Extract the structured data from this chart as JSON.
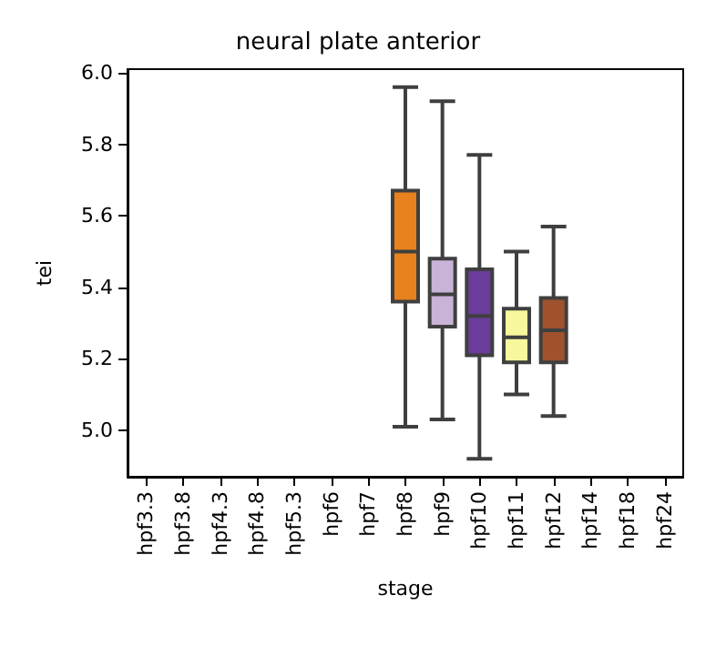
{
  "chart_data": {
    "type": "box",
    "title": "neural plate anterior",
    "xlabel": "stage",
    "ylabel": "tei",
    "categories": [
      "hpf3.3",
      "hpf3.8",
      "hpf4.3",
      "hpf4.8",
      "hpf5.3",
      "hpf6",
      "hpf7",
      "hpf8",
      "hpf9",
      "hpf10",
      "hpf11",
      "hpf12",
      "hpf14",
      "hpf18",
      "hpf24"
    ],
    "boxes": [
      null,
      null,
      null,
      null,
      null,
      null,
      null,
      {
        "low": 5.01,
        "q1": 5.36,
        "median": 5.5,
        "q3": 5.67,
        "high": 5.96
      },
      {
        "low": 5.03,
        "q1": 5.29,
        "median": 5.38,
        "q3": 5.48,
        "high": 5.92
      },
      {
        "low": 4.92,
        "q1": 5.21,
        "median": 5.32,
        "q3": 5.45,
        "high": 5.77
      },
      {
        "low": 5.1,
        "q1": 5.19,
        "median": 5.26,
        "q3": 5.34,
        "high": 5.5
      },
      {
        "low": 5.04,
        "q1": 5.19,
        "median": 5.28,
        "q3": 5.37,
        "high": 5.57
      },
      null,
      null,
      null
    ],
    "colors": [
      null,
      null,
      null,
      null,
      null,
      null,
      null,
      "#e8821e",
      "#c9b3d6",
      "#6a3d9a",
      "#f7f79e",
      "#a0522d",
      null,
      null,
      null
    ],
    "ylim": [
      4.87,
      6.01
    ],
    "yticks": [
      {
        "value": 5,
        "label": "5.0"
      },
      5.2,
      5.4,
      5.6,
      5.8,
      {
        "value": 6,
        "label": "6.0"
      }
    ],
    "grid": false
  }
}
